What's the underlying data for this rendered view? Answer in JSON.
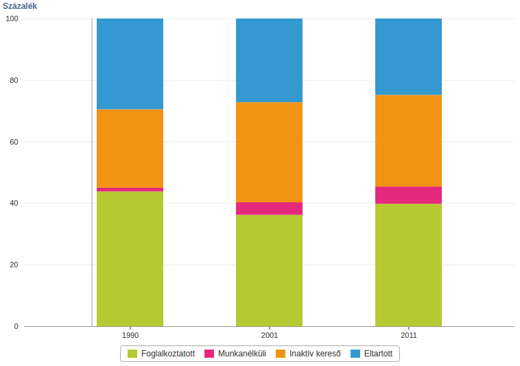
{
  "chart_data": {
    "type": "bar",
    "stacked": true,
    "y_label": "Százalék",
    "categories": [
      "1990",
      "2001",
      "2011"
    ],
    "series": [
      {
        "name": "Foglalkoztatott",
        "color": "#b5c930",
        "values": [
          43.8,
          36.2,
          39.8
        ]
      },
      {
        "name": "Munkanélküli",
        "color": "#e5297d",
        "values": [
          1.2,
          4.1,
          5.6
        ]
      },
      {
        "name": "Inaktív kereső",
        "color": "#f39314",
        "values": [
          25.5,
          32.5,
          29.8
        ]
      },
      {
        "name": "Eltartott",
        "color": "#3399d0",
        "values": [
          29.5,
          27.2,
          24.8
        ]
      }
    ],
    "ylim": [
      0,
      100
    ],
    "yticks": [
      0,
      20,
      40,
      60,
      80,
      100
    ],
    "grid": true,
    "legend": "bottom"
  }
}
